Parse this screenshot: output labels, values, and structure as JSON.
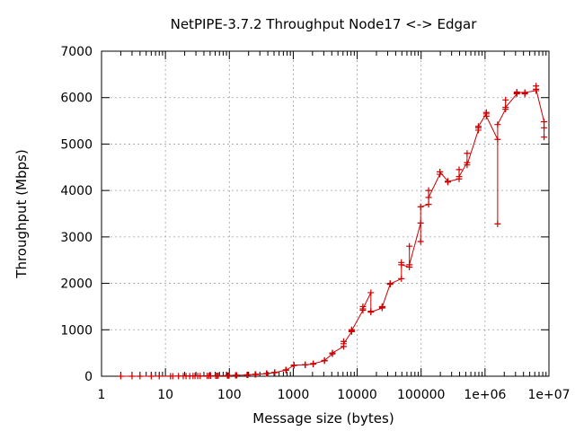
{
  "chart_data": {
    "type": "line",
    "title": "NetPIPE-3.7.2 Throughput Node17 <-> Edgar",
    "xlabel": "Message size (bytes)",
    "ylabel": "Throughput (Mbps)",
    "xscale": "log",
    "xlim": [
      1,
      10000000
    ],
    "ylim": [
      0,
      7000
    ],
    "grid": true,
    "x_ticks": [
      {
        "value": 1,
        "label": "1"
      },
      {
        "value": 10,
        "label": "10"
      },
      {
        "value": 100,
        "label": "100"
      },
      {
        "value": 1000,
        "label": "1000"
      },
      {
        "value": 10000,
        "label": "10000"
      },
      {
        "value": 100000,
        "label": "100000"
      },
      {
        "value": 1000000,
        "label": "1e+06"
      },
      {
        "value": 10000000,
        "label": "1e+07"
      }
    ],
    "y_ticks": [
      {
        "value": 0,
        "label": "0"
      },
      {
        "value": 1000,
        "label": "1000"
      },
      {
        "value": 2000,
        "label": "2000"
      },
      {
        "value": 3000,
        "label": "3000"
      },
      {
        "value": 4000,
        "label": "4000"
      },
      {
        "value": 5000,
        "label": "5000"
      },
      {
        "value": 6000,
        "label": "6000"
      },
      {
        "value": 7000,
        "label": "7000"
      }
    ],
    "series": [
      {
        "color": "#cc0000",
        "marker": "plus",
        "x": [
          2,
          3,
          4,
          6,
          8,
          12,
          13,
          16,
          19,
          21,
          24,
          27,
          29,
          32,
          35,
          45,
          48,
          51,
          61,
          64,
          67,
          93,
          96,
          99,
          125,
          128,
          131,
          189,
          192,
          195,
          253,
          256,
          259,
          381,
          384,
          387,
          509,
          512,
          515,
          765,
          768,
          771,
          1021,
          1024,
          1027,
          1533,
          1536,
          1539,
          2045,
          2048,
          2051,
          3069,
          3072,
          3075,
          4093,
          4096,
          4099,
          6141,
          6144,
          6147,
          8189,
          8192,
          8195,
          12285,
          12288,
          12291,
          16381,
          16384,
          16387,
          24573,
          24576,
          24579,
          32765,
          32768,
          32771,
          49149,
          49152,
          49155,
          65533,
          65536,
          65539,
          98301,
          98304,
          98307,
          131069,
          131072,
          131075,
          196605,
          196608,
          196611,
          262141,
          262144,
          262147,
          393213,
          393216,
          393219,
          524285,
          524288,
          524291,
          786429,
          786432,
          786435,
          1048573,
          1048576,
          1048579,
          1572861,
          1572864,
          1572867,
          2097149,
          2097152,
          2097155,
          3145725,
          3145728,
          3145731,
          4194301,
          4194304,
          4194307,
          6291453,
          6291456,
          6291459,
          8388605,
          8388608,
          8388611
        ],
        "y": [
          0,
          0,
          0,
          0,
          1,
          1,
          1,
          2,
          2,
          3,
          3,
          4,
          4,
          5,
          5,
          7,
          7,
          8,
          9,
          10,
          10,
          14,
          15,
          15,
          19,
          20,
          20,
          28,
          29,
          29,
          38,
          39,
          39,
          57,
          58,
          58,
          78,
          80,
          80,
          130,
          135,
          135,
          230,
          240,
          240,
          245,
          250,
          250,
          260,
          270,
          270,
          330,
          340,
          340,
          480,
          500,
          500,
          640,
          750,
          700,
          960,
          1000,
          980,
          1420,
          1500,
          1450,
          1800,
          1400,
          1380,
          1470,
          1500,
          1490,
          1980,
          2000,
          1990,
          2100,
          2450,
          2400,
          2350,
          2800,
          2400,
          3300,
          2900,
          3650,
          3700,
          4000,
          3850,
          4350,
          4400,
          4400,
          4200,
          4180,
          4190,
          4250,
          4450,
          4300,
          4600,
          4800,
          4550,
          5300,
          5350,
          5380,
          5650,
          5680,
          5600,
          5100,
          3280,
          5420,
          5750,
          5950,
          5790,
          6080,
          6100,
          6120,
          6100,
          6080,
          6110,
          6150,
          6250,
          6180,
          5480,
          5150,
          5350
        ]
      }
    ]
  }
}
